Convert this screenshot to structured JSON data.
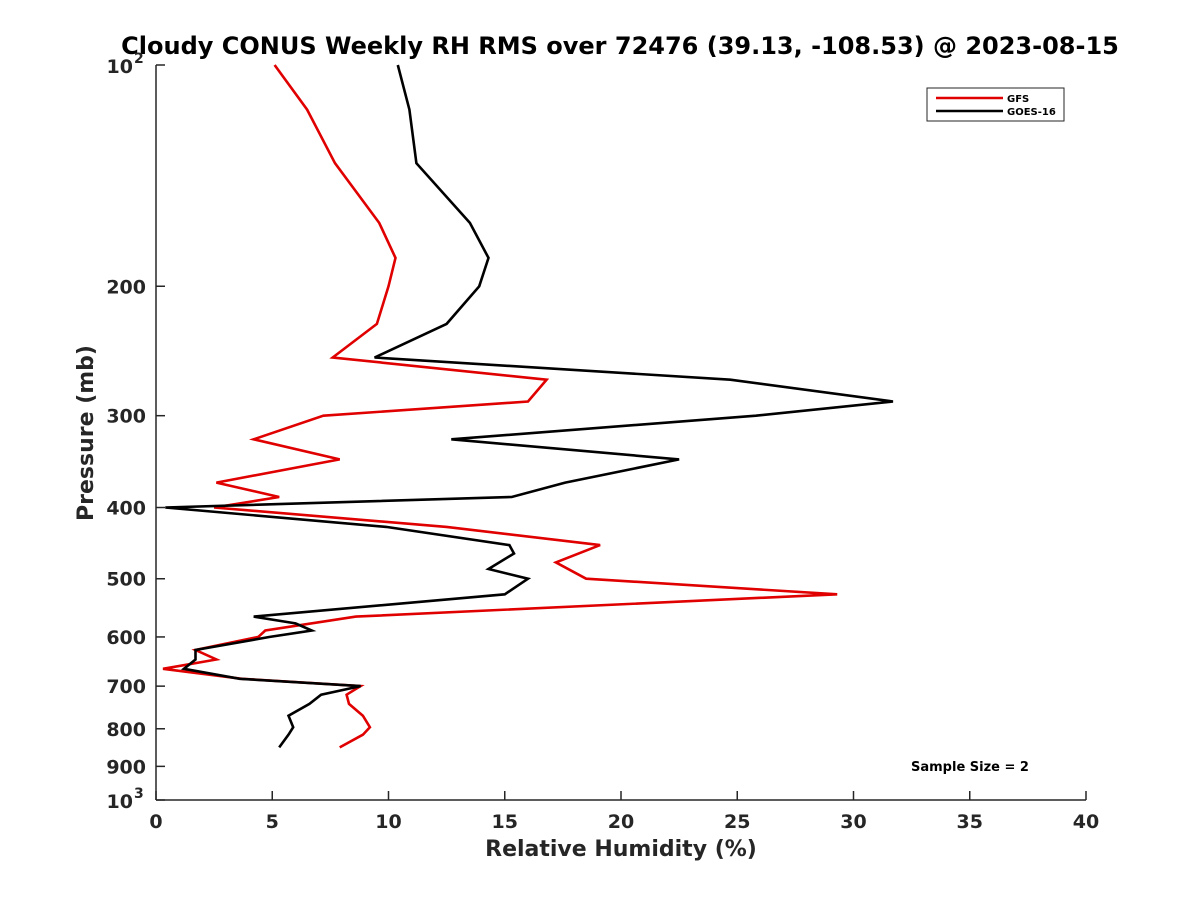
{
  "chart_data": {
    "type": "line",
    "title": "Cloudy CONUS Weekly RH RMS over 72476 (39.13, -108.53) @ 2023-08-15",
    "xlabel": "Relative Humidity (%)",
    "ylabel": "Pressure (mb)",
    "xlim": [
      0,
      40
    ],
    "ylim": [
      100,
      1000
    ],
    "y_scale": "log",
    "y_reversed": true,
    "x_ticks": [
      {
        "value": 0,
        "label": "0"
      },
      {
        "value": 5,
        "label": "5"
      },
      {
        "value": 10,
        "label": "10"
      },
      {
        "value": 15,
        "label": "15"
      },
      {
        "value": 20,
        "label": "20"
      },
      {
        "value": 25,
        "label": "25"
      },
      {
        "value": 30,
        "label": "30"
      },
      {
        "value": 35,
        "label": "35"
      },
      {
        "value": 40,
        "label": "40"
      }
    ],
    "y_ticks": [
      {
        "value": 100,
        "base": "10",
        "exp": "2"
      },
      {
        "value": 200,
        "label": "200"
      },
      {
        "value": 300,
        "label": "300"
      },
      {
        "value": 400,
        "label": "400"
      },
      {
        "value": 500,
        "label": "500"
      },
      {
        "value": 600,
        "label": "600"
      },
      {
        "value": 700,
        "label": "700"
      },
      {
        "value": 800,
        "label": "800"
      },
      {
        "value": 900,
        "label": "900"
      },
      {
        "value": 1000,
        "base": "10",
        "exp": "3"
      }
    ],
    "grid": false,
    "legend_position": "top-right",
    "series": [
      {
        "name": "GFS",
        "color": "#e00000",
        "points": [
          [
            5.1,
            100
          ],
          [
            6.5,
            115
          ],
          [
            7.7,
            136
          ],
          [
            9.6,
            164
          ],
          [
            10.3,
            183
          ],
          [
            10.0,
            200
          ],
          [
            9.5,
            225
          ],
          [
            7.6,
            250
          ],
          [
            16.8,
            268
          ],
          [
            16.0,
            287
          ],
          [
            7.2,
            300
          ],
          [
            4.2,
            323
          ],
          [
            7.9,
            344
          ],
          [
            2.6,
            370
          ],
          [
            5.3,
            387
          ],
          [
            2.5,
            400
          ],
          [
            12.5,
            425
          ],
          [
            19.1,
            450
          ],
          [
            17.2,
            475
          ],
          [
            18.5,
            500
          ],
          [
            29.3,
            525
          ],
          [
            8.6,
            563
          ],
          [
            4.7,
            588
          ],
          [
            4.4,
            600
          ],
          [
            1.7,
            625
          ],
          [
            2.6,
            644
          ],
          [
            0.3,
            663
          ],
          [
            3.7,
            684
          ],
          [
            8.8,
            700
          ],
          [
            8.2,
            719
          ],
          [
            8.3,
            740
          ],
          [
            8.9,
            768
          ],
          [
            9.2,
            796
          ],
          [
            8.9,
            815
          ],
          [
            7.9,
            848
          ]
        ]
      },
      {
        "name": "GOES-16",
        "color": "#000000",
        "points": [
          [
            10.4,
            100
          ],
          [
            10.9,
            115
          ],
          [
            11.2,
            136
          ],
          [
            13.5,
            164
          ],
          [
            14.3,
            183
          ],
          [
            13.9,
            200
          ],
          [
            12.5,
            225
          ],
          [
            9.4,
            250
          ],
          [
            24.7,
            268
          ],
          [
            31.7,
            287
          ],
          [
            25.8,
            300
          ],
          [
            12.7,
            323
          ],
          [
            22.5,
            344
          ],
          [
            17.6,
            370
          ],
          [
            15.3,
            387
          ],
          [
            0.4,
            400
          ],
          [
            9.9,
            425
          ],
          [
            15.2,
            450
          ],
          [
            15.4,
            462
          ],
          [
            14.3,
            485
          ],
          [
            16.0,
            500
          ],
          [
            15.0,
            525
          ],
          [
            4.2,
            563
          ],
          [
            6.0,
            575
          ],
          [
            6.7,
            588
          ],
          [
            4.9,
            600
          ],
          [
            1.7,
            625
          ],
          [
            1.7,
            644
          ],
          [
            1.2,
            663
          ],
          [
            3.6,
            684
          ],
          [
            8.8,
            700
          ],
          [
            7.1,
            719
          ],
          [
            6.6,
            740
          ],
          [
            5.7,
            768
          ],
          [
            5.9,
            796
          ],
          [
            5.7,
            815
          ],
          [
            5.3,
            848
          ]
        ]
      }
    ],
    "annotations": [
      "Sample Size = 2"
    ]
  }
}
